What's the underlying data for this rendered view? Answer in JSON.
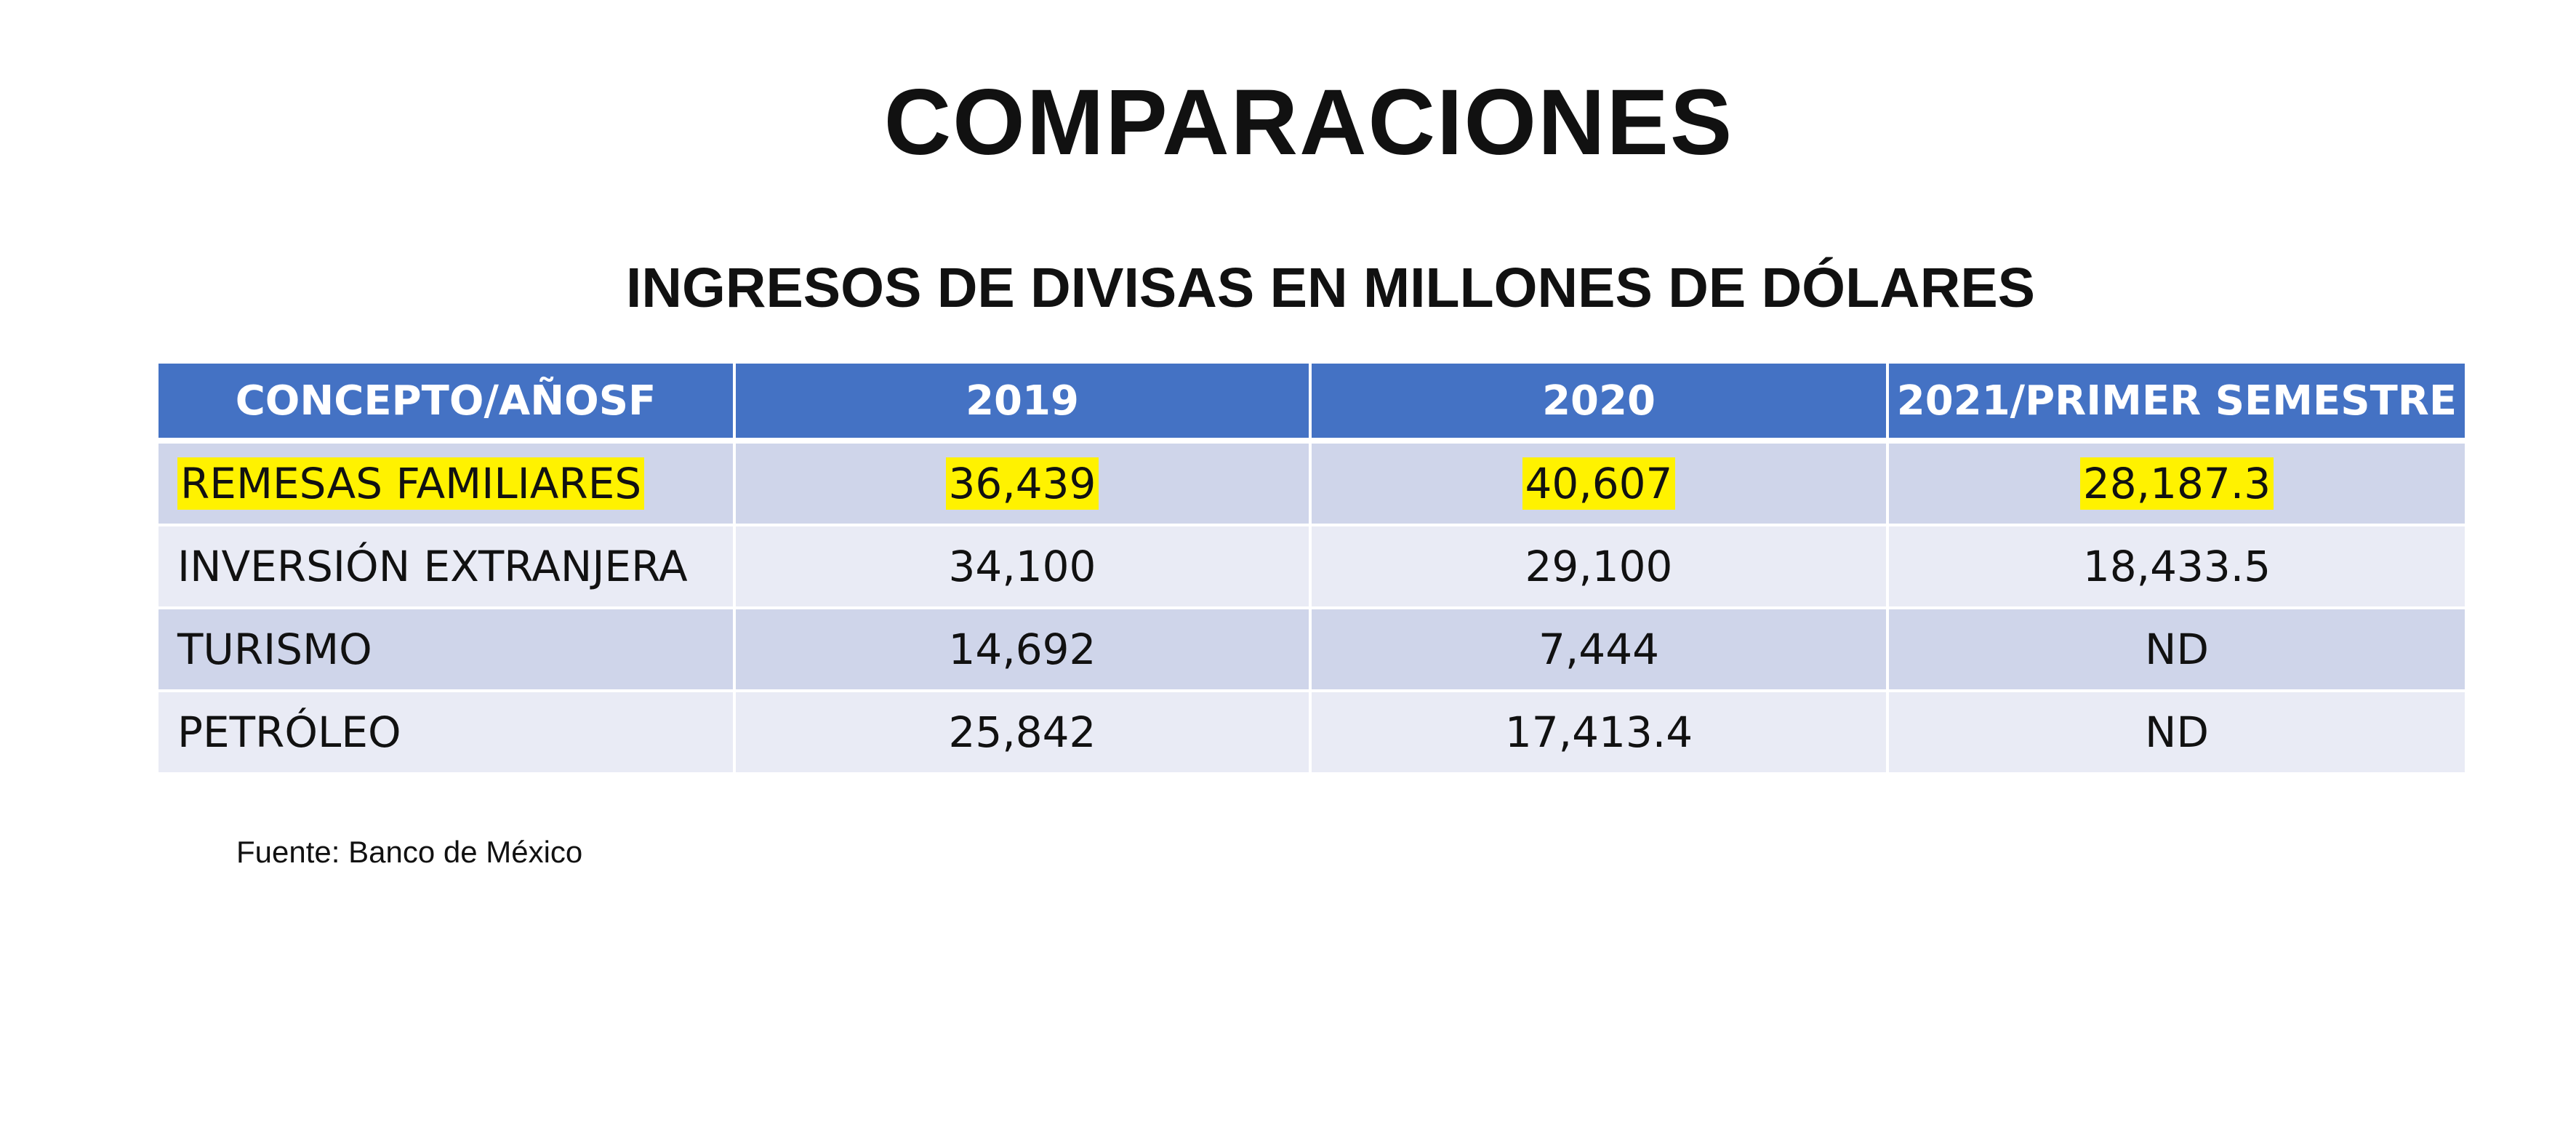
{
  "title": "COMPARACIONES",
  "subtitle": "INGRESOS DE DIVISAS EN MILLONES DE DÓLARES",
  "table": {
    "headers": [
      "CONCEPTO/AÑOSF",
      "2019",
      "2020",
      "2021/PRIMER SEMESTRE"
    ],
    "rows": [
      {
        "concept": "REMESAS FAMILIARES",
        "values": [
          "36,439",
          "40,607",
          "28,187.3"
        ],
        "highlighted": true
      },
      {
        "concept": "INVERSIÓN EXTRANJERA",
        "values": [
          "34,100",
          "29,100",
          "18,433.5"
        ],
        "highlighted": false
      },
      {
        "concept": "TURISMO",
        "values": [
          "14,692",
          "7,444",
          "ND"
        ],
        "highlighted": false
      },
      {
        "concept": "PETRÓLEO",
        "values": [
          "25,842",
          "17,413.4",
          "ND"
        ],
        "highlighted": false
      }
    ]
  },
  "source": "Fuente: Banco de México",
  "colors": {
    "header_bg": "#4472c4",
    "row_dark": "#cfd5ea",
    "row_light": "#e9ebf5",
    "highlight": "#fff200"
  }
}
